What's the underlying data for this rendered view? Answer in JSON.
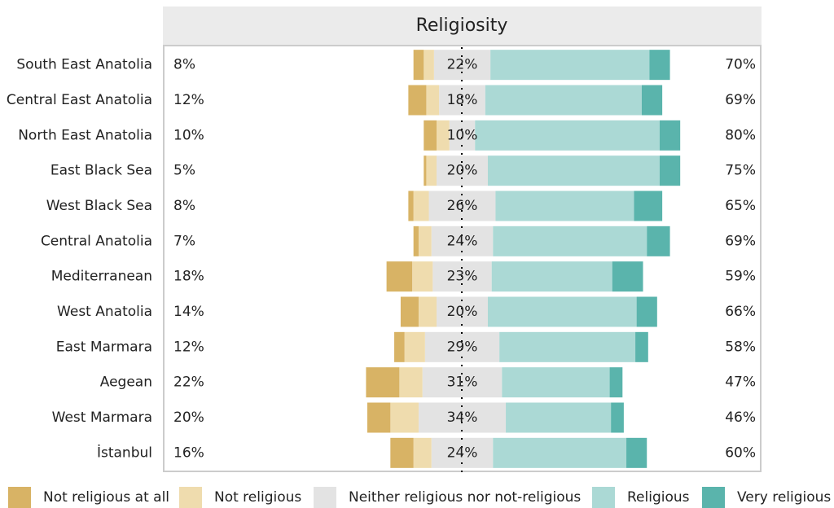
{
  "chart_data": {
    "type": "diverging-bar",
    "title": "Religiosity",
    "categories": [
      "South East Anatolia",
      "Central East Anatolia",
      "North East Anatolia",
      "East Black Sea",
      "West Black Sea",
      "Central Anatolia",
      "Mediterranean",
      "West Anatolia",
      "East Marmara",
      "Aegean",
      "West Marmara",
      "İstanbul"
    ],
    "series": [
      {
        "name": "Not religious at all",
        "color": "#d8b365",
        "side": "left",
        "values": [
          4,
          7,
          5,
          1,
          2,
          2,
          10,
          7,
          4,
          13,
          9,
          9
        ]
      },
      {
        "name": "Not religious",
        "color": "#efdcae",
        "side": "left",
        "values": [
          4,
          5,
          5,
          4,
          6,
          5,
          8,
          7,
          8,
          9,
          11,
          7
        ]
      },
      {
        "name": "Neither religious nor not-religious",
        "color": "#e3e3e3",
        "side": "center",
        "values": [
          22,
          18,
          10,
          20,
          26,
          24,
          23,
          20,
          29,
          31,
          34,
          24
        ],
        "value_labels": [
          "22%",
          "18%",
          "10%",
          "20%",
          "26%",
          "24%",
          "23%",
          "20%",
          "29%",
          "31%",
          "34%",
          "24%"
        ]
      },
      {
        "name": "Religious",
        "color": "#abd9d5",
        "side": "right",
        "values": [
          62,
          61,
          72,
          67,
          54,
          60,
          47,
          58,
          53,
          42,
          41,
          52
        ]
      },
      {
        "name": "Very religious",
        "color": "#5ab4ac",
        "side": "right",
        "values": [
          8,
          8,
          8,
          8,
          11,
          9,
          12,
          8,
          5,
          5,
          5,
          8
        ]
      }
    ],
    "left_labels": [
      "8%",
      "12%",
      "10%",
      "5%",
      "8%",
      "7%",
      "18%",
      "14%",
      "12%",
      "22%",
      "20%",
      "16%"
    ],
    "right_labels": [
      "70%",
      "69%",
      "80%",
      "75%",
      "65%",
      "69%",
      "59%",
      "66%",
      "58%",
      "47%",
      "46%",
      "60%"
    ],
    "xlim": [
      -116.7,
      116.7
    ]
  }
}
